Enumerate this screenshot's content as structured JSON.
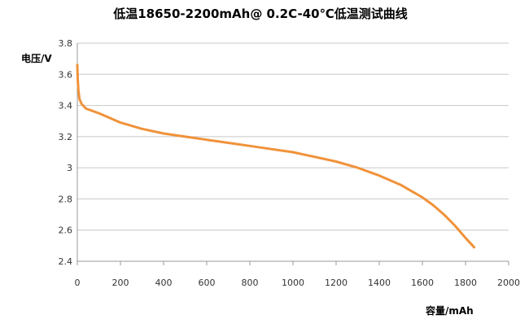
{
  "chart_data": {
    "type": "line",
    "title": "低温18650-2200mAh@ 0.2C-40℃低温测试曲线",
    "xlabel": "容量/mAh",
    "ylabel": "电压/V",
    "xlim": [
      0,
      2000
    ],
    "ylim": [
      2.4,
      3.8
    ],
    "xticks": [
      "0",
      "200",
      "400",
      "600",
      "800",
      "1000",
      "1200",
      "1400",
      "1600",
      "1800",
      "2000"
    ],
    "yticks": [
      "2.4",
      "2.6",
      "2.8",
      "3",
      "3.2",
      "3.4",
      "3.6",
      "3.8"
    ],
    "grid": true,
    "series": [
      {
        "color": "#f0923a",
        "x": [
          0,
          2,
          5,
          10,
          20,
          40,
          60,
          100,
          150,
          200,
          300,
          400,
          500,
          600,
          700,
          800,
          900,
          1000,
          1100,
          1200,
          1300,
          1400,
          1500,
          1550,
          1600,
          1650,
          1700,
          1750,
          1800,
          1840
        ],
        "y": [
          3.66,
          3.57,
          3.5,
          3.44,
          3.41,
          3.38,
          3.37,
          3.35,
          3.32,
          3.29,
          3.25,
          3.22,
          3.2,
          3.18,
          3.16,
          3.14,
          3.12,
          3.1,
          3.07,
          3.04,
          3.0,
          2.95,
          2.89,
          2.85,
          2.81,
          2.76,
          2.7,
          2.63,
          2.55,
          2.49
        ]
      }
    ]
  }
}
